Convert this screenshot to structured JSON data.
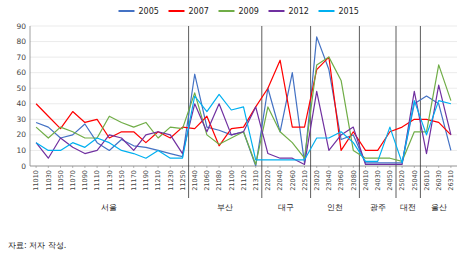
{
  "chart_data": {
    "type": "line",
    "categories": [
      "11010",
      "11030",
      "11050",
      "11070",
      "11090",
      "11110",
      "11130",
      "11150",
      "11170",
      "11190",
      "11210",
      "11230",
      "11250",
      "21040",
      "21060",
      "21080",
      "21100",
      "21120",
      "21310",
      "22020",
      "22040",
      "22060",
      "22510",
      "23020",
      "23040",
      "23060",
      "23080",
      "24010",
      "24030",
      "24050",
      "25020",
      "25040",
      "26010",
      "26030",
      "26310"
    ],
    "series": [
      {
        "name": "2005",
        "color": "#4472C4",
        "values": [
          28,
          25,
          18,
          20,
          27,
          15,
          10,
          17,
          13,
          12,
          10,
          8,
          6,
          59,
          25,
          23,
          20,
          22,
          0,
          50,
          22,
          60,
          2,
          83,
          62,
          17,
          20,
          2,
          2,
          2,
          2,
          40,
          45,
          40,
          10
        ]
      },
      {
        "name": "2007",
        "color": "#FF0000",
        "values": [
          40,
          32,
          24,
          35,
          28,
          30,
          18,
          22,
          22,
          15,
          22,
          18,
          25,
          24,
          32,
          13,
          24,
          25,
          38,
          50,
          68,
          25,
          25,
          62,
          70,
          10,
          22,
          10,
          10,
          22,
          25,
          30,
          30,
          28,
          20
        ]
      },
      {
        "name": "2009",
        "color": "#70AD47",
        "values": [
          25,
          18,
          25,
          22,
          18,
          18,
          32,
          28,
          25,
          28,
          18,
          25,
          24,
          47,
          20,
          14,
          18,
          22,
          1,
          38,
          22,
          15,
          5,
          65,
          70,
          55,
          10,
          5,
          5,
          5,
          3,
          22,
          22,
          65,
          42
        ]
      },
      {
        "name": "2012",
        "color": "#7030A0",
        "values": [
          15,
          5,
          18,
          12,
          8,
          10,
          20,
          18,
          10,
          20,
          22,
          20,
          8,
          40,
          22,
          40,
          20,
          22,
          38,
          8,
          5,
          5,
          1,
          48,
          10,
          20,
          25,
          1,
          1,
          1,
          1,
          48,
          8,
          52,
          20
        ]
      },
      {
        "name": "2015",
        "color": "#00B0F0",
        "values": [
          15,
          10,
          10,
          15,
          12,
          18,
          15,
          10,
          8,
          5,
          10,
          5,
          5,
          45,
          35,
          46,
          36,
          38,
          4,
          4,
          4,
          4,
          4,
          18,
          18,
          22,
          15,
          3,
          3,
          25,
          2,
          42,
          20,
          42,
          40
        ]
      }
    ],
    "groups": [
      {
        "label": "서울",
        "start": 0,
        "end": 13
      },
      {
        "label": "부산",
        "start": 13,
        "end": 19
      },
      {
        "label": "대구",
        "start": 19,
        "end": 23
      },
      {
        "label": "인천",
        "start": 23,
        "end": 27
      },
      {
        "label": "광주",
        "start": 27,
        "end": 30
      },
      {
        "label": "대전",
        "start": 30,
        "end": 32
      },
      {
        "label": "울산",
        "start": 32,
        "end": 35
      }
    ],
    "caption": "자료: 저자 작성.",
    "ylim": [
      0,
      90
    ],
    "yticks": [
      0,
      10,
      20,
      30,
      40,
      50,
      60,
      70,
      80,
      90
    ],
    "grid": true,
    "legend": "top"
  }
}
